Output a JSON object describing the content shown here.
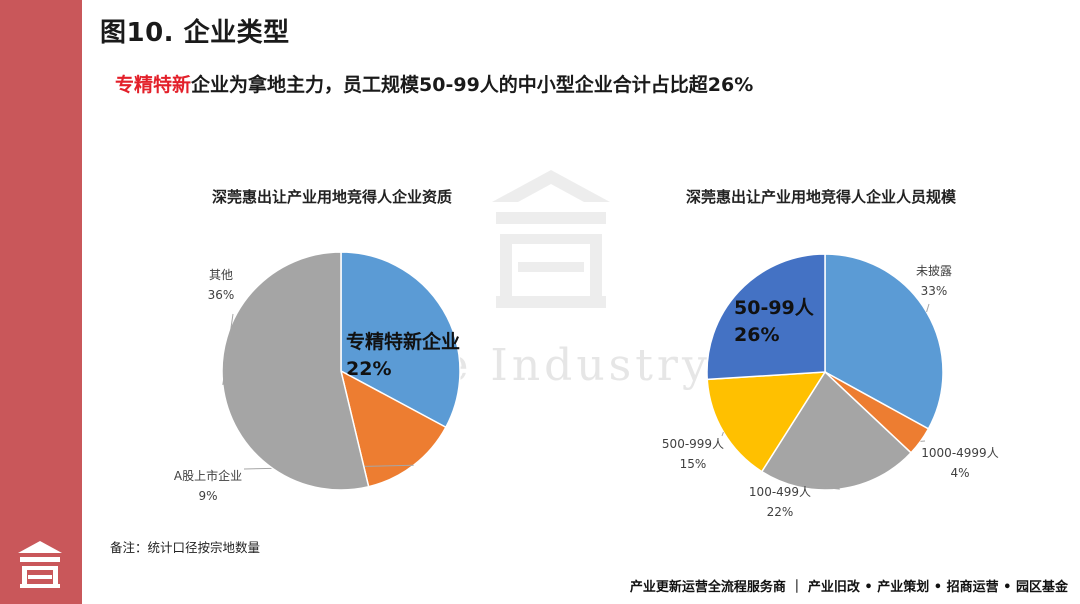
{
  "page": {
    "title": "图10. 企业类型",
    "subtitle_highlight": "专精特新",
    "subtitle_rest": "企业为拿地主力，员工规模50-99人的中小型企业合计占比超26%",
    "note": "备注：统计口径按宗地数量",
    "footer": "产业更新运营全流程服务商 ｜ 产业旧改 • 产业策划 • 招商运营 • 园区基金",
    "watermark_text": "One Industry"
  },
  "chart_data": [
    {
      "type": "pie",
      "title": "深莞惠出让产业用地竞得人企业资质",
      "categories": [
        "专精特新企业",
        "A股上市企业",
        "其他"
      ],
      "values": [
        22,
        9,
        36
      ],
      "labels": [
        "22%",
        "9%",
        "36%"
      ],
      "colors": [
        "#5b9bd5",
        "#ed7d31",
        "#a5a5a5"
      ]
    },
    {
      "type": "pie",
      "title": "深莞惠出让产业用地竞得人企业人员规模",
      "categories": [
        "未披露",
        "1000-4999人",
        "100-499人",
        "500-999人",
        "50-99人"
      ],
      "values": [
        33,
        4,
        22,
        15,
        26
      ],
      "labels": [
        "33%",
        "4%",
        "22%",
        "15%",
        "26%"
      ],
      "colors": [
        "#5b9bd5",
        "#ed7d31",
        "#a5a5a5",
        "#ffc000",
        "#4472c4"
      ]
    }
  ]
}
